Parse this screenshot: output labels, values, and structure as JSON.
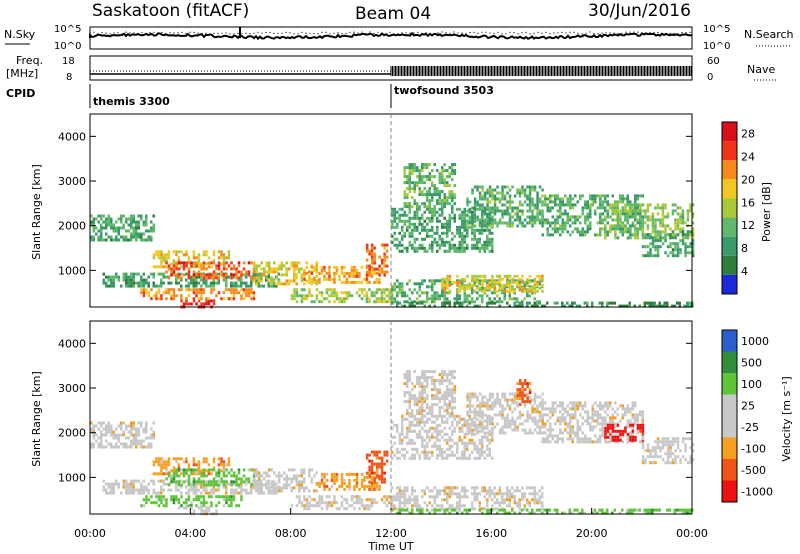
{
  "header": {
    "station": "Saskatoon (fitACF)",
    "beam": "Beam 04",
    "date": "30/Jun/2016"
  },
  "aux": {
    "nsky_label": "N.Sky",
    "nsky_ticks": [
      "10^5",
      "10^0"
    ],
    "nsearch_label": "N.Search",
    "nsearch_ticks": [
      "10^5",
      "10^0"
    ],
    "freq_label_1": "Freq.",
    "freq_label_2": "[MHz]",
    "freq_ticks": [
      "18",
      "8"
    ],
    "nave_label": "Nave",
    "nave_ticks": [
      "60",
      "0"
    ],
    "cpid_label": "CPID",
    "cpid_modes": [
      "themis 3300",
      "twofsound 3503"
    ]
  },
  "colors": {
    "power_scale": [
      "#1a2ad9",
      "#2e7d3a",
      "#3a9a6a",
      "#62b86a",
      "#a8c93a",
      "#f2c623",
      "#f58a1a",
      "#f0341c",
      "#d8101a"
    ],
    "velocity_scale": [
      "#ee1111",
      "#f0541a",
      "#f5a020",
      "#c8c8c8",
      "#c8c8c8",
      "#5fc43a",
      "#2f8f3a",
      "#2b5fd0"
    ]
  },
  "chart_data": [
    {
      "type": "heatmap",
      "name": "power",
      "xlabel": "",
      "ylabel": "Slant Range [km]",
      "ylim": [
        180,
        4500
      ],
      "yticks": [
        "1000",
        "2000",
        "3000",
        "4000"
      ],
      "xlim": [
        0,
        24
      ],
      "colorbar_label": "Power [dB]",
      "colorbar_ticks": [
        "4",
        "8",
        "12",
        "16",
        "20",
        "24",
        "28"
      ],
      "colorbar_range": [
        0,
        30
      ],
      "regions": [
        {
          "t0": 0.0,
          "t1": 2.5,
          "r0": 1700,
          "r1": 2250,
          "level": 9
        },
        {
          "t0": 0.5,
          "t1": 7.5,
          "r0": 650,
          "r1": 950,
          "level": 8
        },
        {
          "t0": 2.5,
          "t1": 5.5,
          "r0": 1050,
          "r1": 1450,
          "level": 18
        },
        {
          "t0": 3.0,
          "t1": 6.5,
          "r0": 800,
          "r1": 1200,
          "level": 25
        },
        {
          "t0": 3.5,
          "t1": 5.0,
          "r0": 180,
          "r1": 350,
          "level": 29
        },
        {
          "t0": 2.0,
          "t1": 6.5,
          "r0": 350,
          "r1": 600,
          "level": 22
        },
        {
          "t0": 6.5,
          "t1": 9.0,
          "r0": 700,
          "r1": 1200,
          "level": 18
        },
        {
          "t0": 8.5,
          "t1": 11.5,
          "r0": 700,
          "r1": 1100,
          "level": 21
        },
        {
          "t0": 11.0,
          "t1": 11.8,
          "r0": 900,
          "r1": 1600,
          "level": 24
        },
        {
          "t0": 8.0,
          "t1": 12.0,
          "r0": 300,
          "r1": 600,
          "level": 14
        },
        {
          "t0": 12.0,
          "t1": 18.0,
          "r0": 300,
          "r1": 800,
          "level": 10
        },
        {
          "t0": 14.0,
          "t1": 18.0,
          "r0": 500,
          "r1": 900,
          "level": 18
        },
        {
          "t0": 12.0,
          "t1": 16.0,
          "r0": 1400,
          "r1": 2400,
          "level": 9
        },
        {
          "t0": 12.5,
          "t1": 14.5,
          "r0": 2400,
          "r1": 3400,
          "level": 11
        },
        {
          "t0": 15.0,
          "t1": 18.0,
          "r0": 2000,
          "r1": 2900,
          "level": 10
        },
        {
          "t0": 18.0,
          "t1": 22.0,
          "r0": 1800,
          "r1": 2700,
          "level": 10
        },
        {
          "t0": 20.5,
          "t1": 24.0,
          "r0": 1700,
          "r1": 2500,
          "level": 13
        },
        {
          "t0": 22.0,
          "t1": 24.0,
          "r0": 1300,
          "r1": 1900,
          "level": 9
        },
        {
          "t0": 12.0,
          "t1": 24.0,
          "r0": 180,
          "r1": 300,
          "level": 6
        }
      ]
    },
    {
      "type": "heatmap",
      "name": "velocity",
      "xlabel": "Time UT",
      "ylabel": "Slant Range [km]",
      "ylim": [
        180,
        4500
      ],
      "yticks": [
        "1000",
        "2000",
        "3000",
        "4000"
      ],
      "xlim": [
        0,
        24
      ],
      "xticks": [
        "00:00",
        "04:00",
        "08:00",
        "12:00",
        "16:00",
        "20:00",
        "00:00"
      ],
      "colorbar_label": "Velocity [m s⁻¹]",
      "colorbar_ticks": [
        "1000",
        "500",
        "100",
        "25",
        "-25",
        "-100",
        "-500",
        "-1000"
      ],
      "regions": [
        {
          "t0": 0.0,
          "t1": 2.5,
          "r0": 1700,
          "r1": 2250,
          "cls": 3
        },
        {
          "t0": 0.5,
          "t1": 7.5,
          "r0": 650,
          "r1": 950,
          "cls": 3
        },
        {
          "t0": 2.5,
          "t1": 5.5,
          "r0": 1050,
          "r1": 1450,
          "cls": 2
        },
        {
          "t0": 3.0,
          "t1": 6.5,
          "r0": 800,
          "r1": 1200,
          "cls": 5
        },
        {
          "t0": 2.0,
          "t1": 6.0,
          "r0": 350,
          "r1": 600,
          "cls": 5
        },
        {
          "t0": 3.5,
          "t1": 5.0,
          "r0": 180,
          "r1": 350,
          "cls": 3
        },
        {
          "t0": 6.5,
          "t1": 9.0,
          "r0": 700,
          "r1": 1200,
          "cls": 3
        },
        {
          "t0": 9.0,
          "t1": 11.5,
          "r0": 700,
          "r1": 1100,
          "cls": 2
        },
        {
          "t0": 11.0,
          "t1": 11.8,
          "r0": 900,
          "r1": 1600,
          "cls": 1
        },
        {
          "t0": 8.0,
          "t1": 12.0,
          "r0": 300,
          "r1": 600,
          "cls": 3
        },
        {
          "t0": 12.0,
          "t1": 18.0,
          "r0": 300,
          "r1": 800,
          "cls": 3
        },
        {
          "t0": 12.0,
          "t1": 16.0,
          "r0": 1400,
          "r1": 2400,
          "cls": 3
        },
        {
          "t0": 12.5,
          "t1": 14.5,
          "r0": 2400,
          "r1": 3400,
          "cls": 3
        },
        {
          "t0": 15.0,
          "t1": 18.0,
          "r0": 2000,
          "r1": 2900,
          "cls": 3
        },
        {
          "t0": 17.0,
          "t1": 17.5,
          "r0": 2600,
          "r1": 3200,
          "cls": 1
        },
        {
          "t0": 18.0,
          "t1": 22.0,
          "r0": 1800,
          "r1": 2700,
          "cls": 3
        },
        {
          "t0": 20.5,
          "t1": 22.0,
          "r0": 1800,
          "r1": 2200,
          "cls": 0
        },
        {
          "t0": 22.0,
          "t1": 24.0,
          "r0": 1300,
          "r1": 1900,
          "cls": 3
        },
        {
          "t0": 12.0,
          "t1": 24.0,
          "r0": 180,
          "r1": 300,
          "cls": 5
        }
      ]
    }
  ]
}
